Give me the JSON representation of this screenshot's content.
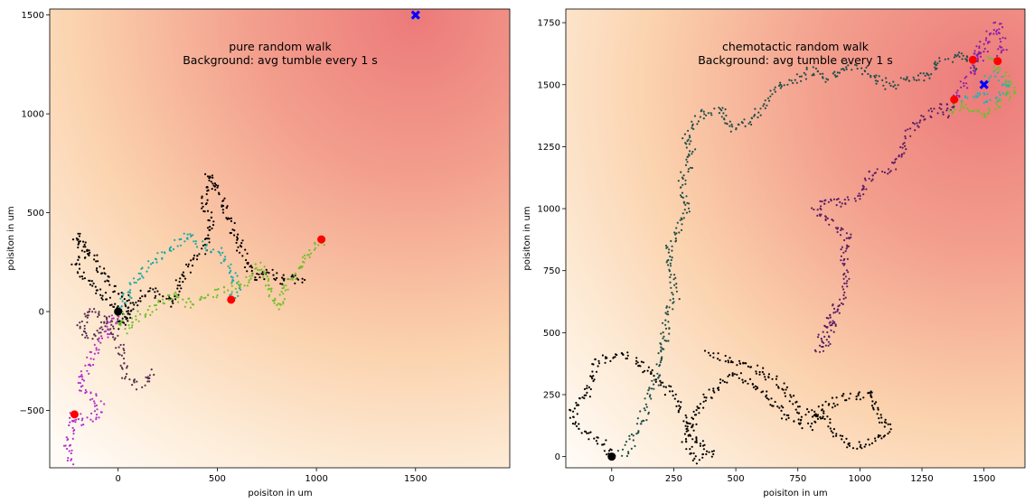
{
  "chart_data": [
    {
      "type": "scatter",
      "title": "pure random walk",
      "subtitle": "Background: avg tumble every 1 s",
      "xlabel": "poisiton in um",
      "ylabel": "poisiton in um",
      "xlim": [
        -345,
        1975
      ],
      "ylim": [
        -790,
        1530
      ],
      "xticks": [
        0,
        500,
        1000,
        1500
      ],
      "yticks": [
        -500,
        0,
        500,
        1000,
        1500
      ],
      "grid": false,
      "background": "concentration gradient centred on target (red high, white low)",
      "start": {
        "x": 0,
        "y": 0,
        "color": "#000000"
      },
      "target": {
        "x": 1500,
        "y": 1500,
        "marker": "x",
        "color": "#0000ff"
      },
      "endpoints": [
        {
          "x": -220,
          "y": -520
        },
        {
          "x": 570,
          "y": 60
        },
        {
          "x": 1025,
          "y": 365
        }
      ],
      "series": [
        {
          "color": "#000000",
          "path": [
            [
              0,
              0
            ],
            [
              -80,
              80
            ],
            [
              -150,
              160
            ],
            [
              -220,
              230
            ],
            [
              -160,
              290
            ],
            [
              -210,
              380
            ],
            [
              -120,
              270
            ],
            [
              -40,
              140
            ],
            [
              60,
              40
            ],
            [
              10,
              -80
            ],
            [
              110,
              70
            ],
            [
              170,
              110
            ],
            [
              260,
              40
            ],
            [
              340,
              200
            ],
            [
              440,
              330
            ],
            [
              470,
              430
            ],
            [
              430,
              560
            ],
            [
              460,
              700
            ],
            [
              520,
              580
            ],
            [
              560,
              450
            ],
            [
              610,
              350
            ],
            [
              640,
              240
            ],
            [
              700,
              160
            ],
            [
              760,
              210
            ],
            [
              810,
              150
            ],
            [
              870,
              190
            ],
            [
              930,
              140
            ]
          ]
        },
        {
          "color": "#5a2d50",
          "path": [
            [
              0,
              0
            ],
            [
              -60,
              -60
            ],
            [
              -130,
              -140
            ],
            [
              -190,
              -80
            ],
            [
              -140,
              20
            ],
            [
              -60,
              -40
            ],
            [
              10,
              -180
            ],
            [
              40,
              -320
            ],
            [
              120,
              -380
            ],
            [
              170,
              -290
            ]
          ]
        },
        {
          "color": "#1aa9a6",
          "path": [
            [
              0,
              0
            ],
            [
              80,
              140
            ],
            [
              160,
              240
            ],
            [
              270,
              320
            ],
            [
              360,
              390
            ],
            [
              430,
              330
            ],
            [
              510,
              300
            ],
            [
              570,
              200
            ],
            [
              600,
              120
            ],
            [
              570,
              60
            ]
          ]
        },
        {
          "color": "#6fc12a",
          "path": [
            [
              0,
              0
            ],
            [
              40,
              -90
            ],
            [
              110,
              -20
            ],
            [
              190,
              30
            ],
            [
              280,
              90
            ],
            [
              360,
              40
            ],
            [
              450,
              80
            ],
            [
              540,
              110
            ],
            [
              640,
              140
            ],
            [
              720,
              240
            ],
            [
              760,
              100
            ],
            [
              800,
              20
            ],
            [
              860,
              150
            ],
            [
              940,
              260
            ],
            [
              1025,
              365
            ]
          ]
        },
        {
          "color": "#b330c9",
          "path": [
            [
              0,
              0
            ],
            [
              -90,
              -160
            ],
            [
              -160,
              -280
            ],
            [
              -200,
              -380
            ],
            [
              -130,
              -430
            ],
            [
              -80,
              -500
            ],
            [
              -170,
              -560
            ],
            [
              -220,
              -520
            ],
            [
              -260,
              -680
            ],
            [
              -230,
              -770
            ]
          ]
        }
      ]
    },
    {
      "type": "scatter",
      "title": "chemotactic random walk",
      "subtitle": "Background: avg tumble every 1 s",
      "xlabel": "poisiton in um",
      "ylabel": "poisiton in um",
      "xlim": [
        -185,
        1665
      ],
      "ylim": [
        -45,
        1805
      ],
      "xticks": [
        0,
        250,
        500,
        750,
        1000,
        1250,
        1500
      ],
      "yticks": [
        0,
        250,
        500,
        750,
        1000,
        1250,
        1500,
        1750
      ],
      "grid": false,
      "background": "concentration gradient centred on target (red high, white low)",
      "start": {
        "x": 0,
        "y": 0,
        "color": "#000000"
      },
      "target": {
        "x": 1500,
        "y": 1500,
        "marker": "x",
        "color": "#0000ff"
      },
      "endpoints": [
        {
          "x": 1380,
          "y": 1440
        },
        {
          "x": 1455,
          "y": 1600
        },
        {
          "x": 1555,
          "y": 1595
        }
      ],
      "series": [
        {
          "color": "#000000",
          "path": [
            [
              0,
              0
            ],
            [
              -40,
              60
            ],
            [
              -110,
              100
            ],
            [
              -170,
              180
            ],
            [
              -100,
              250
            ],
            [
              -60,
              380
            ],
            [
              40,
              420
            ],
            [
              120,
              370
            ],
            [
              200,
              300
            ],
            [
              250,
              240
            ],
            [
              300,
              150
            ],
            [
              340,
              60
            ],
            [
              400,
              20
            ],
            [
              350,
              -20
            ],
            [
              300,
              60
            ],
            [
              340,
              180
            ],
            [
              420,
              280
            ],
            [
              500,
              330
            ],
            [
              620,
              250
            ],
            [
              700,
              170
            ],
            [
              800,
              120
            ],
            [
              860,
              210
            ],
            [
              950,
              240
            ],
            [
              1050,
              250
            ],
            [
              1080,
              150
            ],
            [
              1120,
              120
            ],
            [
              1060,
              70
            ],
            [
              1000,
              40
            ],
            [
              950,
              50
            ],
            [
              900,
              100
            ],
            [
              840,
              170
            ],
            [
              760,
              180
            ],
            [
              700,
              260
            ],
            [
              640,
              320
            ],
            [
              560,
              360
            ],
            [
              470,
              390
            ],
            [
              380,
              420
            ]
          ]
        },
        {
          "color": "#1e4f4a",
          "path": [
            [
              0,
              0
            ],
            [
              60,
              20
            ],
            [
              120,
              150
            ],
            [
              180,
              320
            ],
            [
              210,
              450
            ],
            [
              220,
              560
            ],
            [
              260,
              650
            ],
            [
              240,
              720
            ],
            [
              230,
              850
            ],
            [
              260,
              900
            ],
            [
              300,
              1000
            ],
            [
              280,
              1100
            ],
            [
              330,
              1220
            ],
            [
              300,
              1300
            ],
            [
              360,
              1380
            ],
            [
              440,
              1400
            ],
            [
              480,
              1320
            ],
            [
              560,
              1350
            ],
            [
              620,
              1420
            ],
            [
              680,
              1500
            ],
            [
              750,
              1520
            ],
            [
              800,
              1560
            ],
            [
              880,
              1520
            ],
            [
              960,
              1580
            ],
            [
              1050,
              1540
            ],
            [
              1120,
              1490
            ],
            [
              1200,
              1530
            ],
            [
              1270,
              1530
            ],
            [
              1330,
              1600
            ],
            [
              1420,
              1620
            ],
            [
              1480,
              1560
            ]
          ]
        },
        {
          "color": "#5a1e66",
          "path": [
            [
              900,
              600
            ],
            [
              880,
              480
            ],
            [
              830,
              430
            ],
            [
              860,
              520
            ],
            [
              920,
              620
            ],
            [
              950,
              740
            ],
            [
              930,
              820
            ],
            [
              960,
              890
            ],
            [
              880,
              950
            ],
            [
              820,
              990
            ],
            [
              860,
              1040
            ],
            [
              940,
              1020
            ],
            [
              1010,
              1060
            ],
            [
              1050,
              1140
            ],
            [
              1120,
              1160
            ],
            [
              1170,
              1220
            ],
            [
              1210,
              1330
            ],
            [
              1270,
              1380
            ],
            [
              1330,
              1420
            ],
            [
              1360,
              1380
            ],
            [
              1380,
              1440
            ]
          ]
        },
        {
          "color": "#8b1fa8",
          "path": [
            [
              1380,
              1440
            ],
            [
              1430,
              1520
            ],
            [
              1460,
              1560
            ],
            [
              1500,
              1640
            ],
            [
              1455,
              1600
            ],
            [
              1520,
              1700
            ],
            [
              1555,
              1750
            ],
            [
              1580,
              1660
            ],
            [
              1540,
              1590
            ]
          ]
        },
        {
          "color": "#2bb0b0",
          "path": [
            [
              1420,
              1440
            ],
            [
              1480,
              1470
            ],
            [
              1520,
              1420
            ],
            [
              1560,
              1460
            ],
            [
              1600,
              1500
            ],
            [
              1550,
              1540
            ],
            [
              1500,
              1510
            ]
          ]
        },
        {
          "color": "#67c22a",
          "path": [
            [
              1360,
              1390
            ],
            [
              1410,
              1420
            ],
            [
              1450,
              1400
            ],
            [
              1500,
              1380
            ],
            [
              1560,
              1420
            ],
            [
              1620,
              1470
            ],
            [
              1580,
              1540
            ],
            [
              1530,
              1610
            ],
            [
              1555,
              1595
            ]
          ]
        }
      ]
    }
  ]
}
